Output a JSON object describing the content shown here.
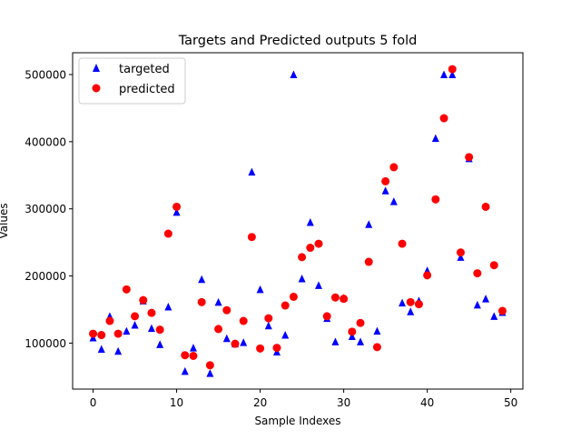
{
  "chart_data": {
    "type": "scatter",
    "title": "Targets and Predicted outputs 5 fold",
    "xlabel": "Sample Indexes",
    "ylabel": "Values",
    "xlim": [
      -2.45,
      51.45
    ],
    "ylim": [
      31500,
      532500
    ],
    "xticks": [
      0,
      10,
      20,
      30,
      40,
      50
    ],
    "yticks": [
      100000,
      200000,
      300000,
      400000,
      500000
    ],
    "legend_position": "top-left",
    "grid": false,
    "series": [
      {
        "name": "targeted",
        "marker": "triangle",
        "color": "#0000ff",
        "x": [
          0,
          1,
          2,
          3,
          4,
          5,
          6,
          7,
          8,
          9,
          10,
          11,
          12,
          13,
          14,
          15,
          16,
          17,
          18,
          19,
          20,
          21,
          22,
          23,
          24,
          25,
          26,
          27,
          28,
          29,
          30,
          31,
          32,
          33,
          34,
          35,
          36,
          37,
          38,
          39,
          40,
          41,
          42,
          43,
          44,
          45,
          46,
          47,
          48,
          49
        ],
        "y": [
          108000,
          91000,
          140000,
          88000,
          118000,
          127000,
          163000,
          122000,
          98000,
          154000,
          295000,
          58000,
          93000,
          195000,
          55000,
          161000,
          107000,
          99000,
          101000,
          355000,
          180000,
          126000,
          87000,
          112000,
          500000,
          196000,
          280000,
          186000,
          137000,
          102000,
          167000,
          110000,
          102000,
          277000,
          118000,
          327000,
          311000,
          160000,
          147000,
          163000,
          208000,
          405000,
          500000,
          500000,
          228000,
          375000,
          157000,
          166000,
          140000,
          146000
        ]
      },
      {
        "name": "predicted",
        "marker": "circle",
        "color": "#ff0000",
        "x": [
          0,
          1,
          2,
          3,
          4,
          5,
          6,
          7,
          8,
          9,
          10,
          11,
          12,
          13,
          14,
          15,
          16,
          17,
          18,
          19,
          20,
          21,
          22,
          23,
          24,
          25,
          26,
          27,
          28,
          29,
          30,
          31,
          32,
          33,
          34,
          35,
          36,
          37,
          38,
          39,
          40,
          41,
          42,
          43,
          44,
          45,
          46,
          47,
          48,
          49
        ],
        "y": [
          114000,
          112000,
          133000,
          114000,
          180000,
          140000,
          164000,
          145000,
          120000,
          263000,
          303000,
          82000,
          81000,
          161000,
          67000,
          121000,
          149000,
          99000,
          133000,
          258000,
          92000,
          137000,
          93000,
          156000,
          169000,
          228000,
          242000,
          248000,
          140000,
          168000,
          166000,
          117000,
          130000,
          221000,
          94000,
          341000,
          362000,
          248000,
          161000,
          158000,
          201000,
          314000,
          435000,
          508000,
          235000,
          377000,
          204000,
          303000,
          216000,
          148000
        ]
      }
    ]
  }
}
